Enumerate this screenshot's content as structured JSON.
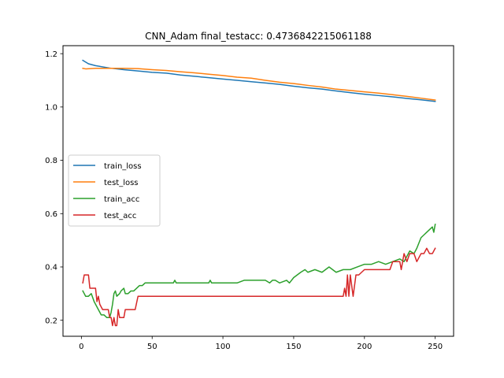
{
  "chart_data": {
    "type": "line",
    "title": "CNN_Adam  final_testacc: 0.4736842215061188",
    "xlabel": "",
    "ylabel": "",
    "xlim": [
      -13,
      263
    ],
    "ylim": [
      0.14,
      1.23
    ],
    "xticks": [
      0,
      50,
      100,
      150,
      200,
      250
    ],
    "yticks": [
      0.2,
      0.4,
      0.6,
      0.8,
      1.0,
      1.2
    ],
    "ytick_labels": [
      "0.2",
      "0.4",
      "0.6",
      "0.8",
      "1.0",
      "1.2"
    ],
    "grid": false,
    "legend_position": "center-left",
    "series": [
      {
        "name": "train_loss",
        "color": "#1f77b4",
        "x": [
          1,
          5,
          10,
          20,
          30,
          40,
          50,
          60,
          70,
          80,
          90,
          100,
          110,
          120,
          130,
          140,
          150,
          160,
          170,
          180,
          190,
          200,
          210,
          220,
          230,
          240,
          250
        ],
        "y": [
          1.175,
          1.162,
          1.155,
          1.146,
          1.14,
          1.135,
          1.13,
          1.127,
          1.12,
          1.115,
          1.11,
          1.105,
          1.1,
          1.095,
          1.09,
          1.085,
          1.078,
          1.072,
          1.067,
          1.06,
          1.054,
          1.048,
          1.043,
          1.038,
          1.032,
          1.027,
          1.021
        ]
      },
      {
        "name": "test_loss",
        "color": "#ff7f0e",
        "x": [
          1,
          3,
          10,
          20,
          30,
          40,
          50,
          60,
          70,
          80,
          90,
          100,
          110,
          120,
          130,
          140,
          150,
          160,
          170,
          180,
          190,
          200,
          210,
          220,
          230,
          240,
          250
        ],
        "y": [
          1.145,
          1.143,
          1.145,
          1.145,
          1.145,
          1.144,
          1.14,
          1.137,
          1.132,
          1.128,
          1.123,
          1.118,
          1.112,
          1.108,
          1.1,
          1.093,
          1.088,
          1.081,
          1.075,
          1.067,
          1.062,
          1.057,
          1.052,
          1.046,
          1.04,
          1.033,
          1.026
        ]
      },
      {
        "name": "train_acc",
        "color": "#2ca02c",
        "x": [
          1,
          2,
          3,
          5,
          7,
          9,
          11,
          13,
          14,
          16,
          18,
          20,
          21,
          22,
          23,
          24,
          25,
          27,
          28,
          30,
          31,
          33,
          35,
          37,
          39,
          41,
          43,
          45,
          50,
          60,
          65,
          66,
          67,
          70,
          80,
          90,
          91,
          92,
          100,
          110,
          115,
          120,
          130,
          133,
          135,
          137,
          140,
          145,
          147,
          150,
          155,
          158,
          160,
          165,
          170,
          175,
          180,
          185,
          190,
          195,
          200,
          205,
          210,
          215,
          220,
          225,
          228,
          230,
          232,
          235,
          237,
          240,
          242,
          244,
          246,
          248,
          249,
          250
        ],
        "y": [
          0.31,
          0.3,
          0.29,
          0.29,
          0.3,
          0.27,
          0.25,
          0.23,
          0.22,
          0.22,
          0.21,
          0.21,
          0.23,
          0.26,
          0.3,
          0.31,
          0.29,
          0.3,
          0.31,
          0.32,
          0.3,
          0.3,
          0.31,
          0.31,
          0.32,
          0.33,
          0.33,
          0.34,
          0.34,
          0.34,
          0.34,
          0.35,
          0.34,
          0.34,
          0.34,
          0.34,
          0.35,
          0.34,
          0.34,
          0.34,
          0.35,
          0.35,
          0.35,
          0.34,
          0.35,
          0.35,
          0.34,
          0.35,
          0.34,
          0.36,
          0.38,
          0.39,
          0.38,
          0.39,
          0.38,
          0.4,
          0.38,
          0.39,
          0.39,
          0.4,
          0.41,
          0.41,
          0.42,
          0.41,
          0.42,
          0.43,
          0.42,
          0.44,
          0.46,
          0.45,
          0.47,
          0.51,
          0.52,
          0.53,
          0.54,
          0.55,
          0.53,
          0.56
        ]
      },
      {
        "name": "test_acc",
        "color": "#d62728",
        "x": [
          1,
          2,
          3,
          5,
          6,
          10,
          11,
          12,
          13,
          15,
          17,
          19,
          20,
          21,
          22,
          23,
          24,
          25,
          26,
          27,
          28,
          30,
          31,
          33,
          35,
          37,
          38,
          40,
          41,
          45,
          50,
          100,
          150,
          185,
          186,
          187,
          188,
          189,
          190,
          192,
          194,
          196,
          200,
          210,
          218,
          220,
          225,
          226,
          228,
          230,
          232,
          235,
          237,
          240,
          242,
          244,
          246,
          248,
          250
        ],
        "y": [
          0.34,
          0.37,
          0.37,
          0.37,
          0.32,
          0.32,
          0.27,
          0.29,
          0.26,
          0.24,
          0.24,
          0.24,
          0.21,
          0.21,
          0.18,
          0.21,
          0.18,
          0.18,
          0.24,
          0.21,
          0.21,
          0.21,
          0.24,
          0.24,
          0.24,
          0.24,
          0.24,
          0.29,
          0.29,
          0.29,
          0.29,
          0.29,
          0.29,
          0.29,
          0.32,
          0.29,
          0.37,
          0.29,
          0.37,
          0.29,
          0.37,
          0.37,
          0.39,
          0.39,
          0.39,
          0.42,
          0.42,
          0.39,
          0.45,
          0.42,
          0.45,
          0.45,
          0.42,
          0.45,
          0.45,
          0.47,
          0.45,
          0.45,
          0.47
        ]
      }
    ]
  }
}
